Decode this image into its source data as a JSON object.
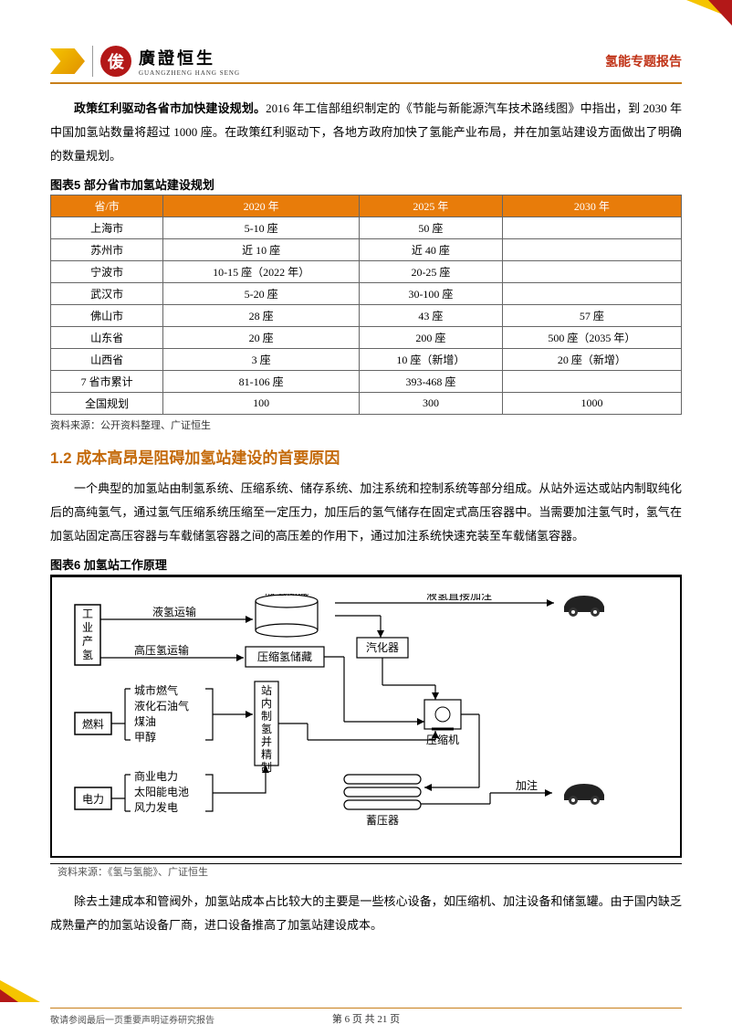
{
  "header": {
    "logo_cn": "廣證恒生",
    "logo_en": "GUANGZHENG HANG SENG",
    "title": "氢能专题报告"
  },
  "para1_bold": "政策红利驱动各省市加快建设规划。",
  "para1_rest": "2016 年工信部组织制定的《节能与新能源汽车技术路线图》中指出，到 2030 年中国加氢站数量将超过 1000 座。在政策红利驱动下，各地方政府加快了氢能产业布局，并在加氢站建设方面做出了明确的数量规划。",
  "table5": {
    "title": "图表5 部分省市加氢站建设规划",
    "headers": [
      "省/市",
      "2020 年",
      "2025 年",
      "2030 年"
    ],
    "rows": [
      [
        "上海市",
        "5-10 座",
        "50 座",
        ""
      ],
      [
        "苏州市",
        "近 10 座",
        "近 40 座",
        ""
      ],
      [
        "宁波市",
        "10-15 座（2022 年）",
        "20-25 座",
        ""
      ],
      [
        "武汉市",
        "5-20 座",
        "30-100 座",
        ""
      ],
      [
        "佛山市",
        "28 座",
        "43 座",
        "57 座"
      ],
      [
        "山东省",
        "20 座",
        "200 座",
        "500 座（2035 年）"
      ],
      [
        "山西省",
        "3 座",
        "10 座（新增）",
        "20 座（新增）"
      ],
      [
        "7 省市累计",
        "81-106 座",
        "393-468 座",
        ""
      ],
      [
        "全国规划",
        "100",
        "300",
        "1000"
      ]
    ],
    "source": "资料来源：公开资料整理、广证恒生"
  },
  "h2": "1.2  成本高昂是阻碍加氢站建设的首要原因",
  "para2": "一个典型的加氢站由制氢系统、压缩系统、储存系统、加注系统和控制系统等部分组成。从站外运达或站内制取纯化后的高纯氢气，通过氢气压缩系统压缩至一定压力，加压后的氢气储存在固定式高压容器中。当需要加注氢气时，氢气在加氢站固定高压容器与车载储氢容器之间的高压差的作用下，通过加注系统快速充装至车载储氢容器。",
  "table6": {
    "title": "图表6 加氢站工作原理",
    "source": "资料来源：《氢与氢能》、广证恒生"
  },
  "diagram": {
    "boxes": {
      "industrial": "工\n业\n产\n氢",
      "fuel": "燃料",
      "electric": "电力",
      "liquid_store": "液氢储藏",
      "compressed_store": "压缩氢储藏",
      "refine": "站\n内\n制\n氢\n并\n精\n制",
      "vaporizer": "汽化器",
      "compressor": "压缩机",
      "accumulator": "蓄压器"
    },
    "labels": {
      "liquid_transport": "液氢运输",
      "high_pressure_transport": "高压氢运输",
      "city_gas": "城市燃气",
      "lpg": "液化石油气",
      "coal_oil": "煤油",
      "methanol": "甲醇",
      "commercial_power": "商业电力",
      "solar": "太阳能电池",
      "wind": "风力发电",
      "direct_fill": "液氢直接加注",
      "fill": "加注"
    }
  },
  "para3": "除去土建成本和管阀外，加氢站成本占比较大的主要是一些核心设备，如压缩机、加注设备和储氢罐。由于国内缺乏成熟量产的加氢站设备厂商，进口设备推高了加氢站建设成本。",
  "footer": {
    "disclaimer": "敬请参阅最后一页重要声明证券研究报告",
    "page": "第 6 页 共 21 页"
  }
}
